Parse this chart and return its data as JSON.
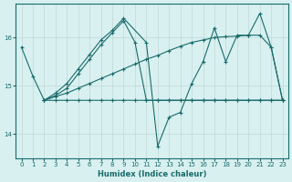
{
  "xlabel": "Humidex (Indice chaleur)",
  "bg_color": "#d8f0f0",
  "line_color": "#1a6b6b",
  "grid_color": "#c0d8d8",
  "xlim": [
    -0.5,
    23.5
  ],
  "ylim": [
    13.5,
    16.7
  ],
  "yticks": [
    14,
    15,
    16
  ],
  "xticks": [
    0,
    1,
    2,
    3,
    4,
    5,
    6,
    7,
    8,
    9,
    10,
    11,
    12,
    13,
    14,
    15,
    16,
    17,
    18,
    19,
    20,
    21,
    22,
    23
  ],
  "series": [
    {
      "x": [
        0,
        1,
        2,
        3,
        4,
        5,
        6,
        7,
        8,
        9,
        10,
        11,
        12,
        13,
        14,
        15,
        16,
        17,
        18,
        19,
        20,
        21,
        22,
        23
      ],
      "y": [
        15.8,
        15.2,
        14.7,
        14.7,
        14.7,
        14.7,
        14.7,
        14.7,
        14.7,
        14.7,
        14.7,
        14.7,
        14.7,
        14.7,
        14.7,
        14.7,
        14.7,
        14.7,
        14.7,
        14.7,
        14.7,
        14.7,
        14.7,
        14.7
      ]
    },
    {
      "x": [
        2,
        3,
        4,
        5,
        6,
        7,
        8,
        9,
        10,
        11,
        12,
        13,
        14,
        15,
        16,
        17,
        18,
        19,
        20,
        21,
        22,
        23
      ],
      "y": [
        14.7,
        14.78,
        14.85,
        14.95,
        15.05,
        15.15,
        15.25,
        15.35,
        15.45,
        15.55,
        15.63,
        15.73,
        15.82,
        15.9,
        15.95,
        16.0,
        16.02,
        16.03,
        16.05,
        16.05,
        15.8,
        14.7
      ]
    },
    {
      "x": [
        2,
        3,
        4,
        5,
        6,
        7,
        8,
        9,
        10,
        11,
        12,
        13,
        14,
        15,
        16,
        17,
        18,
        19,
        20,
        21,
        22,
        23
      ],
      "y": [
        14.7,
        14.8,
        14.95,
        15.25,
        15.55,
        15.85,
        16.1,
        16.35,
        15.9,
        14.7,
        14.7,
        14.7,
        14.7,
        14.7,
        14.7,
        14.7,
        14.7,
        14.7,
        14.7,
        14.7,
        14.7,
        14.7
      ]
    },
    {
      "x": [
        2,
        3,
        4,
        5,
        6,
        7,
        8,
        9,
        11,
        12,
        13,
        14,
        15,
        16,
        17,
        18,
        19,
        20,
        21,
        22,
        23
      ],
      "y": [
        14.7,
        14.85,
        15.05,
        15.35,
        15.65,
        15.95,
        16.15,
        16.4,
        15.9,
        13.75,
        14.35,
        14.45,
        15.05,
        15.5,
        16.2,
        15.5,
        16.05,
        16.05,
        16.5,
        15.8,
        14.7
      ]
    }
  ]
}
